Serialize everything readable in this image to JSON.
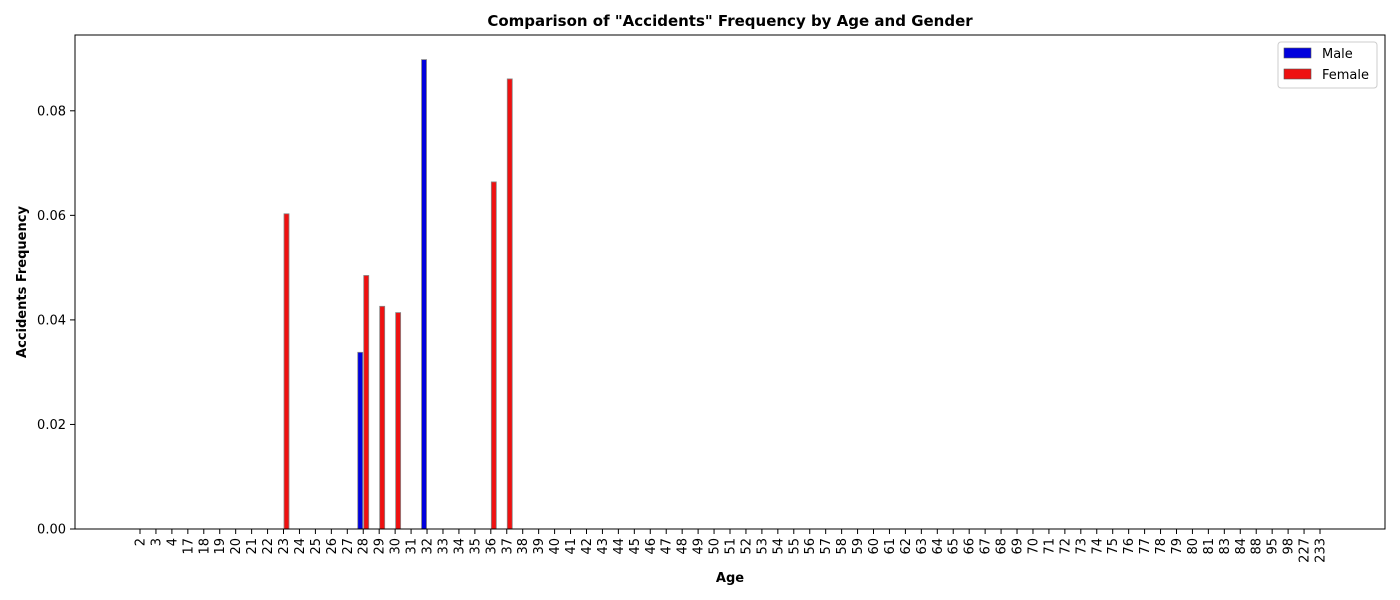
{
  "chart_data": {
    "type": "bar",
    "title": "Comparison of \"Accidents\" Frequency by Age and Gender",
    "xlabel": "Age",
    "ylabel": "Accidents Frequency",
    "ylim": [
      0,
      0.0945
    ],
    "yticks": [
      0.0,
      0.02,
      0.04,
      0.06,
      0.08
    ],
    "ytick_labels": [
      "0.00",
      "0.02",
      "0.04",
      "0.06",
      "0.08"
    ],
    "grid": false,
    "legend_position": "top-right",
    "categories": [
      "2",
      "3",
      "4",
      "17",
      "18",
      "19",
      "20",
      "21",
      "22",
      "23",
      "24",
      "25",
      "26",
      "27",
      "28",
      "29",
      "30",
      "31",
      "32",
      "33",
      "34",
      "35",
      "36",
      "37",
      "38",
      "39",
      "40",
      "41",
      "42",
      "43",
      "44",
      "45",
      "46",
      "47",
      "48",
      "49",
      "50",
      "51",
      "52",
      "53",
      "54",
      "55",
      "56",
      "57",
      "58",
      "59",
      "60",
      "61",
      "62",
      "63",
      "64",
      "65",
      "66",
      "67",
      "68",
      "69",
      "70",
      "71",
      "72",
      "73",
      "74",
      "75",
      "76",
      "77",
      "78",
      "79",
      "80",
      "81",
      "83",
      "84",
      "88",
      "95",
      "98",
      "227",
      "233"
    ],
    "series": [
      {
        "name": "Male",
        "color": "#0000dd",
        "values": [
          0,
          0,
          0,
          0,
          0,
          0,
          0,
          0,
          0,
          0,
          0,
          0,
          0,
          0,
          0.0338,
          0,
          0,
          0,
          0.0898,
          0,
          0,
          0,
          0,
          0,
          0,
          0,
          0,
          0,
          0,
          0,
          0,
          0,
          0,
          0,
          0,
          0,
          0,
          0,
          0,
          0,
          0,
          0,
          0,
          0,
          0,
          0,
          0,
          0,
          0,
          0,
          0,
          0,
          0,
          0,
          0,
          0,
          0,
          0,
          0,
          0,
          0,
          0,
          0,
          0,
          0,
          0,
          0,
          0,
          0,
          0,
          0,
          0,
          0,
          0,
          0
        ]
      },
      {
        "name": "Female",
        "color": "#ee1111",
        "values": [
          0,
          0,
          0,
          0,
          0,
          0,
          0,
          0,
          0,
          0.0603,
          0,
          0,
          0,
          0,
          0.0485,
          0.0426,
          0.0414,
          0,
          0,
          0,
          0,
          0,
          0.0664,
          0.0861,
          0,
          0,
          0,
          0,
          0,
          0,
          0,
          0,
          0,
          0,
          0,
          0,
          0,
          0,
          0,
          0,
          0,
          0,
          0,
          0,
          0,
          0,
          0,
          0,
          0,
          0,
          0,
          0,
          0,
          0,
          0,
          0,
          0,
          0,
          0,
          0,
          0,
          0,
          0,
          0,
          0,
          0,
          0,
          0,
          0,
          0,
          0,
          0,
          0,
          0,
          0
        ]
      }
    ]
  }
}
